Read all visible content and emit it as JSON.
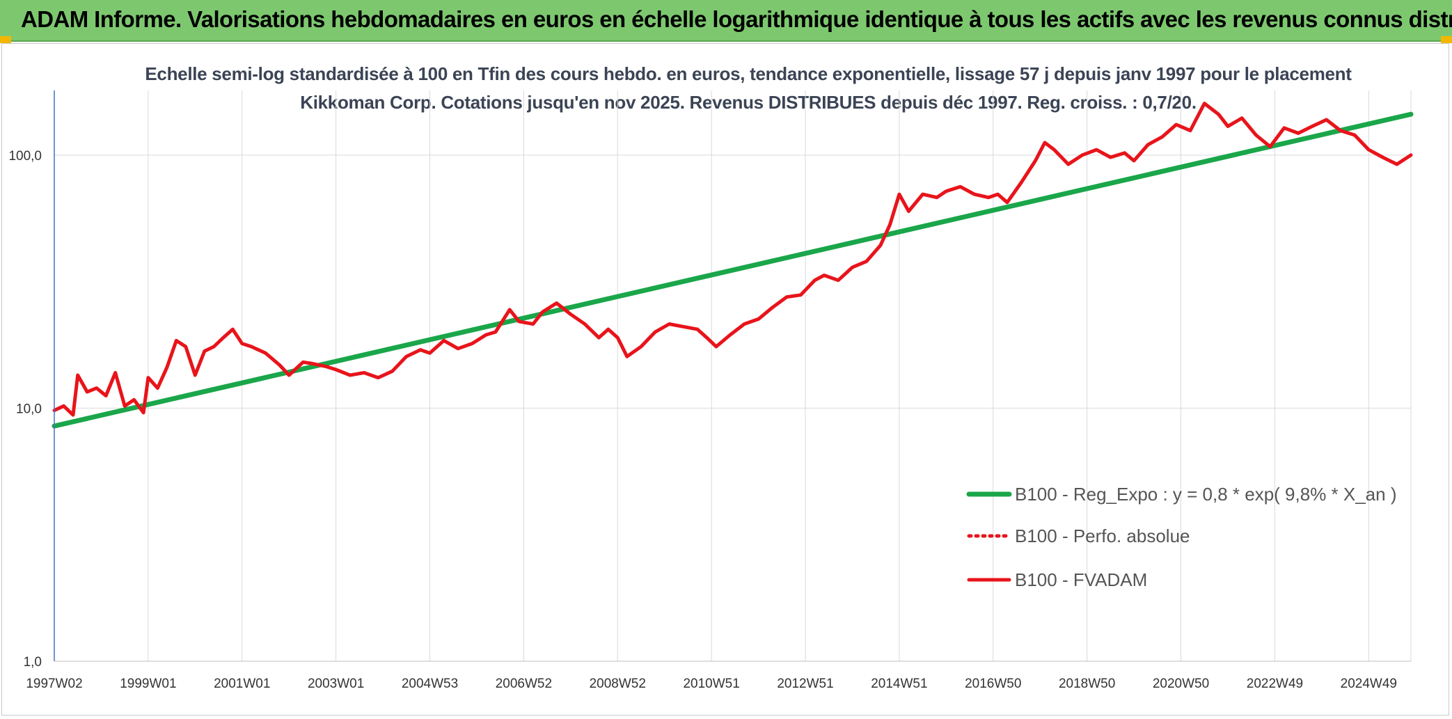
{
  "banner": {
    "title": "ADAM Informe. Valorisations hebdomadaires en euros en échelle logarithmique identique à tous les actifs avec les revenus connus distribués"
  },
  "colors": {
    "banner_bg": "#7dc86f",
    "accent_corners": "#f2b705",
    "trend_line": "#1aa64a",
    "price_line": "#e8141b",
    "y_axis": "#4472c4",
    "grid": "#d9d9d9"
  },
  "chart_data": {
    "type": "line",
    "title": "Echelle semi-log standardisée à 100 en Tfin des cours hebdo. en euros, tendance exponentielle, lissage 57 j depuis janv 1997 pour le placement Kikkoman Corp. Cotations jusqu'en nov 2025. Revenus DISTRIBUES depuis déc 1997. Reg. croiss. : 0,7/20.",
    "y_scale": "log",
    "ylim": [
      1,
      180
    ],
    "y_ticks": [
      "1,0",
      "10,0",
      "100,0"
    ],
    "y_tick_values": [
      1,
      10,
      100
    ],
    "x_range": [
      1997.0,
      2025.9
    ],
    "x_tick_labels": [
      "1997W02",
      "1999W01",
      "2001W01",
      "2003W01",
      "2004W53",
      "2006W52",
      "2008W52",
      "2010W51",
      "2012W51",
      "2014W51",
      "2016W50",
      "2018W50",
      "2020W50",
      "2022W49",
      "2024W49"
    ],
    "x_tick_years": [
      1997.0,
      1999.0,
      2001.0,
      2003.0,
      2005.0,
      2007.0,
      2009.0,
      2011.0,
      2013.0,
      2015.0,
      2017.0,
      2019.0,
      2021.0,
      2023.0,
      2025.0
    ],
    "grid": "vertical-and-horizontal",
    "legend_position": "bottom-right",
    "series": [
      {
        "name": "B100 - Reg_Expo : y = 0,8 * exp( 9,8% *  X_an )",
        "style": "solid-thick",
        "color": "#1aa64a",
        "x": [
          1997.0,
          2025.9
        ],
        "y": [
          8.5,
          145
        ]
      },
      {
        "name": "B100 - Perfo. absolue",
        "style": "dotted",
        "color": "#e8141b",
        "x": [],
        "y": []
      },
      {
        "name": "B100 - FVADAM",
        "style": "solid",
        "color": "#e8141b",
        "x": [
          1997.0,
          1997.2,
          1997.4,
          1997.5,
          1997.7,
          1997.9,
          1998.1,
          1998.3,
          1998.5,
          1998.7,
          1998.9,
          1999.0,
          1999.2,
          1999.4,
          1999.6,
          1999.8,
          2000.0,
          2000.2,
          2000.4,
          2000.6,
          2000.8,
          2001.0,
          2001.2,
          2001.5,
          2001.8,
          2002.0,
          2002.3,
          2002.5,
          2002.8,
          2003.0,
          2003.3,
          2003.6,
          2003.9,
          2004.2,
          2004.5,
          2004.8,
          2005.0,
          2005.3,
          2005.6,
          2005.9,
          2006.2,
          2006.4,
          2006.7,
          2006.9,
          2007.2,
          2007.4,
          2007.7,
          2008.0,
          2008.3,
          2008.6,
          2008.8,
          2009.0,
          2009.2,
          2009.5,
          2009.8,
          2010.1,
          2010.4,
          2010.7,
          2010.9,
          2011.1,
          2011.4,
          2011.7,
          2012.0,
          2012.3,
          2012.6,
          2012.9,
          2013.2,
          2013.4,
          2013.7,
          2014.0,
          2014.3,
          2014.6,
          2014.8,
          2015.0,
          2015.2,
          2015.5,
          2015.8,
          2016.0,
          2016.3,
          2016.6,
          2016.9,
          2017.1,
          2017.3,
          2017.6,
          2017.9,
          2018.1,
          2018.3,
          2018.6,
          2018.9,
          2019.2,
          2019.5,
          2019.8,
          2020.0,
          2020.3,
          2020.6,
          2020.9,
          2021.2,
          2021.5,
          2021.8,
          2022.0,
          2022.3,
          2022.6,
          2022.9,
          2023.2,
          2023.5,
          2023.8,
          2024.1,
          2024.4,
          2024.7,
          2025.0,
          2025.3,
          2025.6,
          2025.9
        ],
        "y": [
          9.8,
          10.2,
          9.4,
          13.5,
          11.6,
          12.0,
          11.2,
          13.8,
          10.2,
          10.8,
          9.6,
          13.2,
          12.0,
          14.5,
          18.5,
          17.5,
          13.5,
          16.8,
          17.5,
          19.0,
          20.5,
          18.0,
          17.5,
          16.5,
          14.8,
          13.5,
          15.2,
          15.0,
          14.6,
          14.2,
          13.5,
          13.8,
          13.2,
          14.0,
          16.0,
          17.0,
          16.5,
          18.5,
          17.2,
          18.0,
          19.5,
          20.0,
          24.5,
          22.0,
          21.5,
          24.0,
          26.0,
          23.5,
          21.5,
          19.0,
          20.5,
          19.0,
          16.0,
          17.5,
          20.0,
          21.5,
          21.0,
          20.5,
          19.0,
          17.5,
          19.5,
          21.5,
          22.5,
          25.0,
          27.5,
          28.0,
          32.0,
          33.5,
          32.0,
          36.0,
          38.0,
          44.0,
          53.0,
          70.0,
          60.0,
          70.0,
          68.0,
          72.0,
          75.0,
          70.0,
          68.0,
          70.0,
          65.0,
          78.0,
          95.0,
          112.0,
          105.0,
          92.0,
          100.0,
          105.0,
          98.0,
          102.0,
          95.0,
          110.0,
          118.0,
          132.0,
          125.0,
          160.0,
          145.0,
          130.0,
          140.0,
          120.0,
          108.0,
          128.0,
          122.0,
          130.0,
          138.0,
          125.0,
          120.0,
          105.0,
          98.0,
          92.0,
          100.0
        ]
      }
    ]
  }
}
